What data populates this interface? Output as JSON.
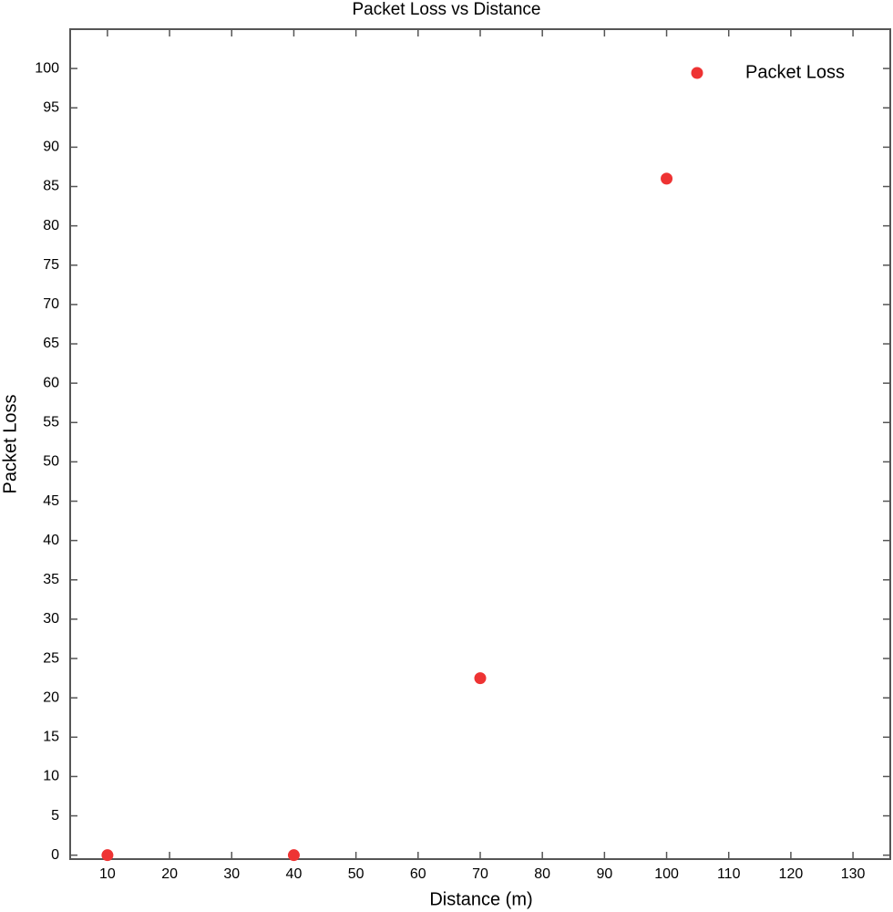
{
  "chart_data": {
    "type": "scatter",
    "title": "Packet Loss vs Distance",
    "x_label": "Distance (m)",
    "y_label": "Packet Loss",
    "series": [
      {
        "name": "Packet Loss",
        "color": "#ee3333",
        "x": [
          10,
          40,
          70,
          100
        ],
        "values": [
          0,
          0,
          22.5,
          86
        ]
      }
    ],
    "xlim": [
      4,
      136
    ],
    "xticks": [
      10,
      20,
      30,
      40,
      50,
      60,
      70,
      80,
      90,
      100,
      110,
      120,
      130
    ],
    "ylim": [
      -0.5,
      105
    ],
    "yticks": [
      0,
      5,
      10,
      15,
      20,
      25,
      30,
      35,
      40,
      45,
      50,
      55,
      60,
      65,
      70,
      75,
      80,
      85,
      90,
      95,
      100
    ],
    "grid": false,
    "legend": "upper right"
  }
}
